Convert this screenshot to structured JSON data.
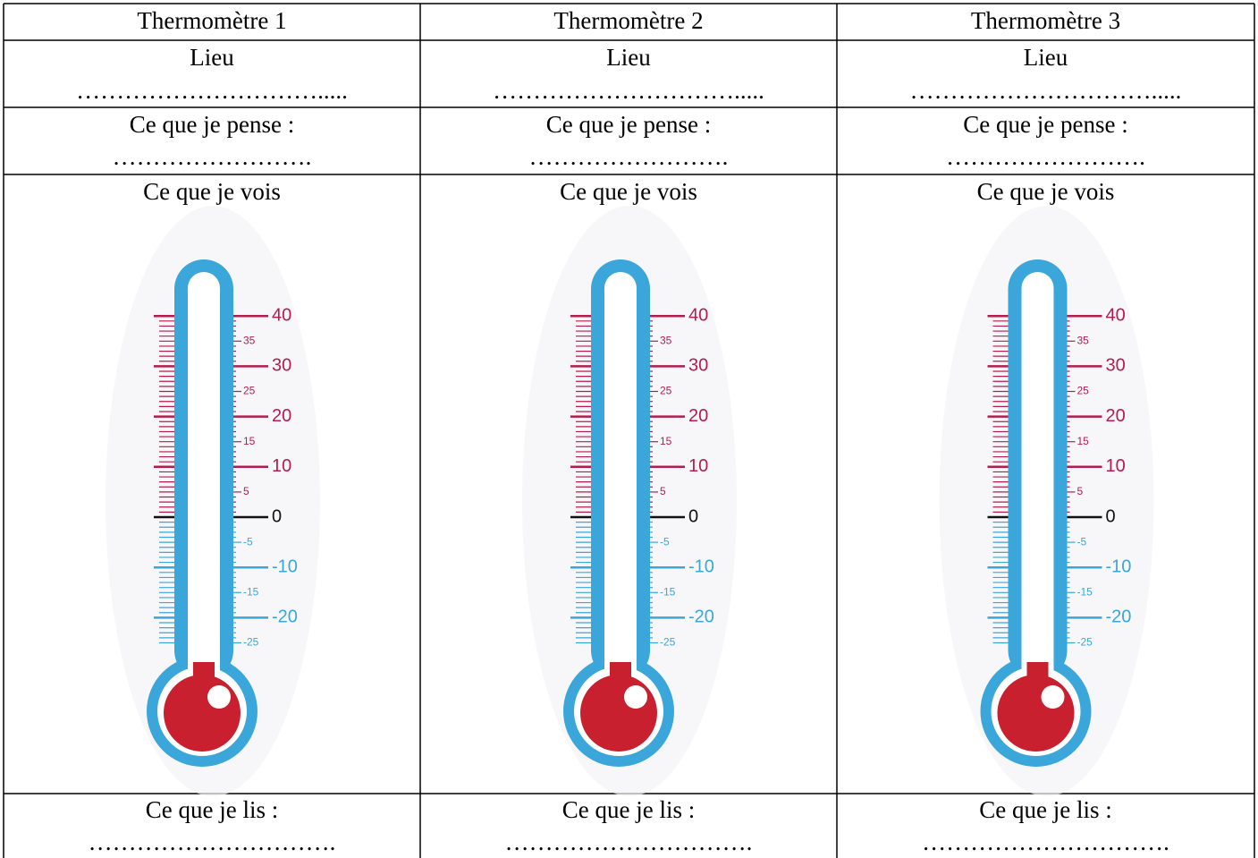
{
  "table": {
    "columns": [
      {
        "title": "Thermomètre 1",
        "place_label": "Lieu",
        "place_blank": "………………………….....",
        "think_label": "Ce que je pense :",
        "think_blank": "…………………….",
        "see_label": "Ce que je vois",
        "read_label": "Ce que je lis :",
        "read_blank": "…………………………."
      },
      {
        "title": "Thermomètre 2",
        "place_label": "Lieu",
        "place_blank": "………………………….....",
        "think_label": "Ce que je pense :",
        "think_blank": "…………………….",
        "see_label": "Ce que je vois",
        "read_label": "Ce que je lis :",
        "read_blank": "…………………………."
      },
      {
        "title": "Thermomètre 3",
        "place_label": "Lieu",
        "place_blank": "………………………….....",
        "think_label": "Ce que je pense :",
        "think_blank": "…………………….",
        "see_label": "Ce que je vois",
        "read_label": "Ce que je lis :",
        "read_blank": "…………………………."
      }
    ]
  },
  "thermometer": {
    "scale": [
      40,
      35,
      30,
      25,
      20,
      15,
      10,
      5,
      0,
      -5,
      -10,
      -15,
      -20,
      -25
    ]
  }
}
